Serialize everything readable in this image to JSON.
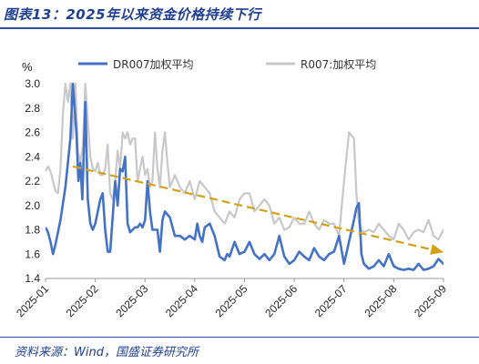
{
  "title": "图表13：2025年以来资金价格持续下行",
  "source": "资料来源：Wind，国盛证券研究所",
  "chart_data": {
    "type": "line",
    "ylabel": "%",
    "ylim": [
      1.4,
      3.0
    ],
    "yticks": [
      "1.4",
      "1.6",
      "1.8",
      "2.0",
      "2.2",
      "2.4",
      "2.6",
      "2.8",
      "3.0"
    ],
    "xticks": [
      "2025-01",
      "2025-02",
      "2025-03",
      "2025-04",
      "2025-05",
      "2025-06",
      "2025-07",
      "2025-08",
      "2025-09"
    ],
    "legend_position": "top",
    "colors": {
      "dr007": "#4472C4",
      "r007": "#C8C8C8",
      "trend": "#D4A017"
    },
    "series": [
      {
        "name": "DR007加权平均",
        "x": [
          0,
          0.05,
          0.1,
          0.15,
          0.2,
          0.3,
          0.4,
          0.5,
          0.55,
          0.62,
          0.66,
          0.7,
          0.74,
          0.8,
          0.85,
          0.9,
          0.95,
          1.0,
          1.05,
          1.1,
          1.15,
          1.2,
          1.25,
          1.3,
          1.35,
          1.4,
          1.45,
          1.5,
          1.55,
          1.6,
          1.65,
          1.7,
          1.75,
          1.8,
          1.85,
          1.9,
          1.95,
          2.0,
          2.05,
          2.1,
          2.15,
          2.2,
          2.25,
          2.3,
          2.35,
          2.4,
          2.5,
          2.6,
          2.7,
          2.8,
          2.9,
          3.0,
          3.05,
          3.1,
          3.15,
          3.2,
          3.3,
          3.4,
          3.5,
          3.6,
          3.65,
          3.7,
          3.8,
          3.9,
          4.0,
          4.1,
          4.2,
          4.3,
          4.4,
          4.5,
          4.6,
          4.7,
          4.8,
          4.9,
          5.0,
          5.1,
          5.2,
          5.3,
          5.4,
          5.5,
          5.6,
          5.7,
          5.8,
          5.9,
          6.0,
          6.1,
          6.2,
          6.25,
          6.3,
          6.35,
          6.4,
          6.5,
          6.6,
          6.7,
          6.8,
          6.9,
          7.0,
          7.1,
          7.2,
          7.3,
          7.4,
          7.5,
          7.6,
          7.7,
          7.8,
          7.9,
          8.0,
          8.1,
          8.2,
          8.3
        ],
        "values": [
          1.82,
          1.78,
          1.7,
          1.6,
          1.68,
          1.88,
          2.15,
          2.55,
          3.0,
          2.6,
          2.2,
          2.35,
          2.05,
          2.85,
          2.05,
          1.85,
          1.8,
          1.85,
          1.95,
          2.05,
          2.1,
          1.8,
          1.62,
          1.62,
          1.9,
          2.2,
          2.0,
          2.3,
          2.28,
          2.4,
          1.85,
          1.78,
          1.8,
          1.82,
          1.82,
          1.85,
          1.82,
          1.88,
          2.2,
          1.95,
          1.8,
          1.8,
          1.8,
          1.62,
          1.88,
          1.95,
          1.9,
          1.75,
          1.75,
          1.72,
          1.75,
          1.72,
          1.85,
          1.75,
          1.7,
          1.82,
          1.85,
          1.75,
          1.58,
          1.55,
          1.6,
          1.58,
          1.7,
          1.6,
          1.62,
          1.7,
          1.6,
          1.56,
          1.6,
          1.55,
          1.6,
          1.75,
          1.58,
          1.52,
          1.55,
          1.62,
          1.58,
          1.55,
          1.65,
          1.58,
          1.55,
          1.6,
          1.62,
          1.75,
          1.52,
          1.7,
          1.88,
          1.98,
          2.02,
          1.6,
          1.52,
          1.48,
          1.5,
          1.55,
          1.5,
          1.6,
          1.5,
          1.48,
          1.47,
          1.48,
          1.47,
          1.52,
          1.47,
          1.48,
          1.5,
          1.56,
          1.52,
          1.57,
          1.5,
          1.47
        ]
      },
      {
        "name": "R007:加权平均",
        "x": [
          0,
          0.05,
          0.1,
          0.15,
          0.2,
          0.25,
          0.3,
          0.35,
          0.4,
          0.45,
          0.5,
          0.55,
          0.6,
          0.65,
          0.7,
          0.75,
          0.8,
          0.85,
          0.9,
          0.95,
          1.0,
          1.05,
          1.1,
          1.15,
          1.2,
          1.25,
          1.3,
          1.35,
          1.4,
          1.45,
          1.5,
          1.55,
          1.6,
          1.65,
          1.7,
          1.75,
          1.8,
          1.85,
          1.9,
          1.95,
          2.0,
          2.05,
          2.1,
          2.15,
          2.2,
          2.25,
          2.3,
          2.35,
          2.4,
          2.45,
          2.5,
          2.6,
          2.7,
          2.8,
          2.9,
          3.0,
          3.1,
          3.2,
          3.3,
          3.4,
          3.5,
          3.6,
          3.7,
          3.8,
          3.9,
          4.0,
          4.1,
          4.2,
          4.3,
          4.4,
          4.5,
          4.6,
          4.7,
          4.8,
          4.9,
          5.0,
          5.1,
          5.2,
          5.3,
          5.4,
          5.5,
          5.6,
          5.7,
          5.8,
          5.9,
          6.0,
          6.1,
          6.2,
          6.25,
          6.3,
          6.35,
          6.4,
          6.5,
          6.6,
          6.7,
          6.8,
          6.9,
          7.0,
          7.1,
          7.2,
          7.3,
          7.4,
          7.5,
          7.6,
          7.7,
          7.8,
          7.9,
          8.0,
          8.1,
          8.2,
          8.3
        ],
        "values": [
          2.28,
          2.32,
          2.28,
          2.2,
          2.12,
          2.1,
          2.3,
          2.75,
          3.0,
          2.85,
          3.0,
          2.55,
          3.0,
          2.45,
          2.35,
          2.5,
          3.0,
          2.7,
          2.4,
          2.3,
          2.28,
          2.35,
          2.25,
          2.25,
          2.3,
          2.5,
          2.1,
          2.05,
          2.2,
          2.45,
          2.3,
          2.6,
          2.55,
          2.6,
          2.5,
          2.55,
          2.55,
          2.2,
          2.3,
          2.4,
          2.25,
          2.3,
          2.15,
          2.2,
          2.6,
          2.3,
          2.15,
          2.45,
          2.6,
          2.35,
          2.15,
          2.25,
          2.15,
          2.1,
          2.2,
          2.05,
          2.2,
          2.15,
          2.1,
          1.95,
          1.9,
          1.85,
          1.95,
          1.9,
          2.05,
          2.1,
          2.1,
          1.95,
          2.0,
          2.05,
          2.0,
          1.85,
          1.9,
          1.8,
          1.82,
          1.9,
          1.85,
          1.85,
          1.95,
          1.85,
          1.8,
          1.88,
          1.85,
          1.85,
          1.75,
          2.2,
          2.6,
          2.55,
          2.1,
          1.85,
          1.8,
          1.78,
          1.8,
          1.78,
          1.85,
          1.8,
          1.75,
          1.72,
          1.85,
          1.8,
          1.72,
          1.78,
          1.8,
          1.78,
          1.88,
          1.75,
          1.72,
          1.8,
          1.82,
          1.75,
          1.72
        ]
      }
    ],
    "trend": {
      "x": [
        0.55,
        7.95
      ],
      "values": [
        2.32,
        1.62
      ]
    }
  }
}
